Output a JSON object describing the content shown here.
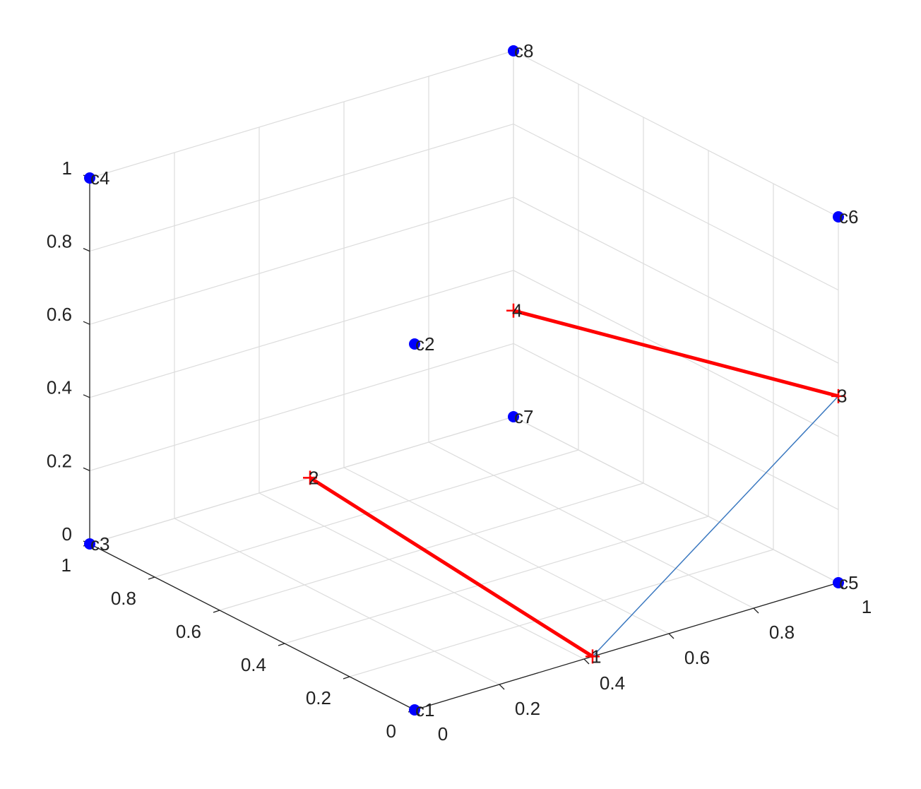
{
  "chart_data": {
    "type": "scatter3d",
    "xlim": [
      0,
      1
    ],
    "ylim": [
      0,
      1
    ],
    "zlim": [
      0,
      1
    ],
    "xticks": [
      0,
      0.2,
      0.4,
      0.6,
      0.8,
      1
    ],
    "yticks": [
      0,
      0.2,
      0.4,
      0.6,
      0.8,
      1
    ],
    "zticks": [
      0,
      0.2,
      0.4,
      0.6,
      0.8,
      1
    ],
    "grid": true,
    "points": {
      "color": "#0000ff",
      "labels": [
        "c1",
        "c2",
        "c3",
        "c4",
        "c5",
        "c6",
        "c7",
        "c8"
      ],
      "x": [
        0,
        0,
        0,
        0,
        1,
        1,
        1,
        1
      ],
      "y": [
        0,
        0,
        1,
        1,
        0,
        0,
        1,
        1
      ],
      "z": [
        0,
        1,
        0,
        1,
        0,
        1,
        0,
        1
      ]
    },
    "path": {
      "color": "#ff0000",
      "labels": [
        "1",
        "2",
        "3",
        "4"
      ],
      "x": [
        0.42,
        0.52,
        1,
        1
      ],
      "y": [
        0,
        1,
        0,
        1
      ],
      "z": [
        0,
        0,
        0.51,
        0.29
      ]
    },
    "links": [
      {
        "color": "#ff0000",
        "pairs": [
          [
            0,
            1
          ],
          [
            2,
            3
          ]
        ]
      },
      {
        "color": "#3a78c0",
        "pairs": [
          [
            0,
            2
          ]
        ]
      }
    ]
  }
}
